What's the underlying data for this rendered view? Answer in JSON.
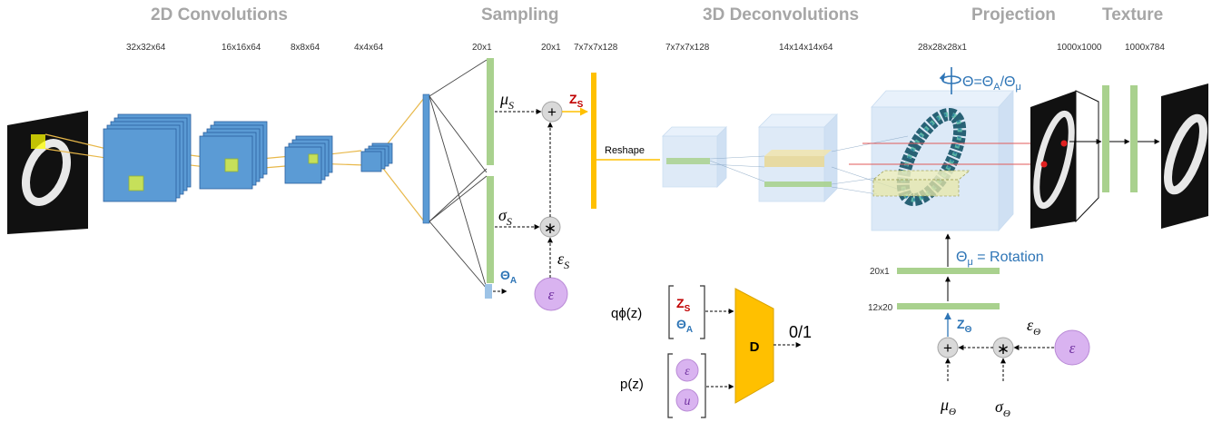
{
  "headers": {
    "conv2d": "2D Convolutions",
    "sampling": "Sampling",
    "deconv3d": "3D Deconvolutions",
    "projection": "Projection",
    "texture": "Texture"
  },
  "dims": {
    "c1": "32x32x64",
    "c2": "16x16x64",
    "c3": "8x8x64",
    "c4": "4x4x64",
    "s1": "20x1",
    "s2": "20x1",
    "s3": "7x7x7x128",
    "d1": "7x7x7x128",
    "d2": "14x14x14x64",
    "d3": "28x28x28x1",
    "p1": "1000x1000",
    "p2": "1000x784",
    "r1": "20x1",
    "r2": "12x20"
  },
  "sampling": {
    "mu": "μ",
    "mu_sub": "S",
    "sigma": "σ",
    "sigma_sub": "S",
    "eps": "ε",
    "eps_sub": "S",
    "plus": "+",
    "times": "∗",
    "z": "Z",
    "z_sub": "S",
    "theta": "Θ",
    "theta_sub": "A",
    "eps_circle": "ε"
  },
  "reshape_label": "Reshape",
  "rotation": {
    "theta_eq": "Θ=Θ",
    "theta_eq_sub1": "A",
    "theta_eq_mid": "/Θ",
    "theta_eq_sub2": "μ",
    "theta_mu": "Θ",
    "theta_mu_sub": "μ",
    "rotation_text": " = Rotation",
    "z": "Z",
    "z_sub": "Θ",
    "eps": "ε",
    "eps_sub": "Θ",
    "mu": "μ",
    "mu_sub": "Θ",
    "sigma": "σ",
    "sigma_sub": "Θ",
    "plus": "+",
    "times": "∗",
    "eps_circle": "ε"
  },
  "discriminator": {
    "q_label": "qϕ(z)",
    "q_z": "Z",
    "q_z_sub": "S",
    "q_theta": "Θ",
    "q_theta_sub": "A",
    "p_label": "p(z)",
    "p_eps": "ε",
    "p_u": "u",
    "d_label": "D",
    "output": "0/1"
  },
  "colors": {
    "header": "#a6a6a6",
    "conv_blue": "#5b9bd5",
    "green": "#a9d18e",
    "yellow": "#ffc000",
    "purple": "#d9b3f0",
    "red": "#c00000",
    "theta_blue": "#2e75b6",
    "cube": "#dbe8f7"
  }
}
